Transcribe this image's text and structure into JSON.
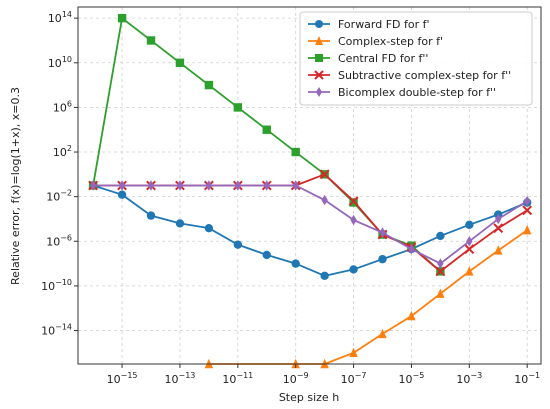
{
  "chart_data": {
    "type": "line",
    "title": "",
    "xlabel": "Step size h",
    "ylabel": "Relative error, f(x)=log(1+x), x=0.3",
    "xscale": "log",
    "yscale": "log",
    "xlim": [
      3e-17,
      0.3
    ],
    "ylim": [
      1e-17,
      1000000000000000.0
    ],
    "grid": true,
    "legend_position": "top-right",
    "x_ticks": [
      {
        "value": 1e-15,
        "base": "10",
        "exp": "−15"
      },
      {
        "value": 1e-13,
        "base": "10",
        "exp": "−13"
      },
      {
        "value": 1e-11,
        "base": "10",
        "exp": "−11"
      },
      {
        "value": 1e-09,
        "base": "10",
        "exp": "−9"
      },
      {
        "value": 1e-07,
        "base": "10",
        "exp": "−7"
      },
      {
        "value": 1e-05,
        "base": "10",
        "exp": "−5"
      },
      {
        "value": 0.001,
        "base": "10",
        "exp": "−3"
      },
      {
        "value": 0.1,
        "base": "10",
        "exp": "−1"
      }
    ],
    "y_ticks": [
      {
        "value": 100000000000000.0,
        "base": "10",
        "exp": "14"
      },
      {
        "value": 10000000000.0,
        "base": "10",
        "exp": "10"
      },
      {
        "value": 1000000.0,
        "base": "10",
        "exp": "6"
      },
      {
        "value": 100.0,
        "base": "10",
        "exp": "2"
      },
      {
        "value": 0.01,
        "base": "10",
        "exp": "−2"
      },
      {
        "value": 1e-06,
        "base": "10",
        "exp": "−6"
      },
      {
        "value": 1e-10,
        "base": "10",
        "exp": "−10"
      },
      {
        "value": 1e-14,
        "base": "10",
        "exp": "−14"
      }
    ],
    "series": [
      {
        "name": "Forward FD for f'",
        "color": "#1f77b4",
        "marker": "circle",
        "x": [
          1e-16,
          1e-15,
          1e-14,
          1e-13,
          1e-12,
          1e-11,
          1e-10,
          1e-09,
          1e-08,
          1e-07,
          1e-06,
          1e-05,
          0.0001,
          0.001,
          0.01,
          0.1
        ],
        "y": [
          0.1,
          0.015,
          0.0002,
          4e-05,
          1.5e-05,
          5e-07,
          6e-08,
          1e-08,
          8e-10,
          3e-09,
          2.5e-08,
          2e-07,
          3e-06,
          3e-05,
          0.00025,
          0.003
        ]
      },
      {
        "name": "Complex-step for f'",
        "color": "#ff7f0e",
        "marker": "triangle",
        "x": [
          1e-12,
          1e-09,
          1e-08,
          1e-07,
          1e-06,
          1e-05,
          0.0001,
          0.001,
          0.01,
          0.1
        ],
        "y": [
          1e-17,
          1e-17,
          1e-17,
          1e-16,
          5e-15,
          2e-13,
          2e-11,
          2e-09,
          1.5e-07,
          1e-05
        ]
      },
      {
        "name": "Central FD for f''",
        "color": "#2ca02c",
        "marker": "square",
        "x": [
          1e-16,
          1e-15,
          1e-14,
          1e-13,
          1e-12,
          1e-11,
          1e-10,
          1e-09,
          1e-08,
          1e-07,
          1e-06,
          1e-05,
          0.0001
        ],
        "y": [
          0.1,
          100000000000000.0,
          1000000000000.0,
          10000000000.0,
          100000000.0,
          1000000.0,
          10000.0,
          100,
          1,
          0.003,
          4e-06,
          4e-07,
          2e-09
        ]
      },
      {
        "name": "Subtractive complex-step for f''",
        "color": "#d62728",
        "marker": "x",
        "x": [
          1e-16,
          1e-15,
          1e-14,
          1e-13,
          1e-12,
          1e-11,
          1e-10,
          1e-09,
          1e-08,
          1e-07,
          1e-06,
          1e-05,
          0.0001,
          0.001,
          0.01,
          0.1
        ],
        "y": [
          0.1,
          0.1,
          0.1,
          0.1,
          0.1,
          0.1,
          0.1,
          0.1,
          1,
          0.004,
          4e-06,
          3e-07,
          2e-09,
          2e-07,
          1.5e-05,
          0.0006
        ]
      },
      {
        "name": "Bicomplex double-step for f''",
        "color": "#9467bd",
        "marker": "diamond",
        "x": [
          1e-16,
          1e-15,
          1e-14,
          1e-13,
          1e-12,
          1e-11,
          1e-10,
          1e-09,
          1e-08,
          1e-07,
          1e-06,
          1e-05,
          0.0001,
          0.001,
          0.01,
          0.1
        ],
        "y": [
          0.1,
          0.1,
          0.1,
          0.1,
          0.1,
          0.1,
          0.1,
          0.1,
          0.005,
          8e-05,
          6e-06,
          2e-07,
          1e-08,
          1e-06,
          0.0001,
          0.004
        ]
      }
    ]
  }
}
